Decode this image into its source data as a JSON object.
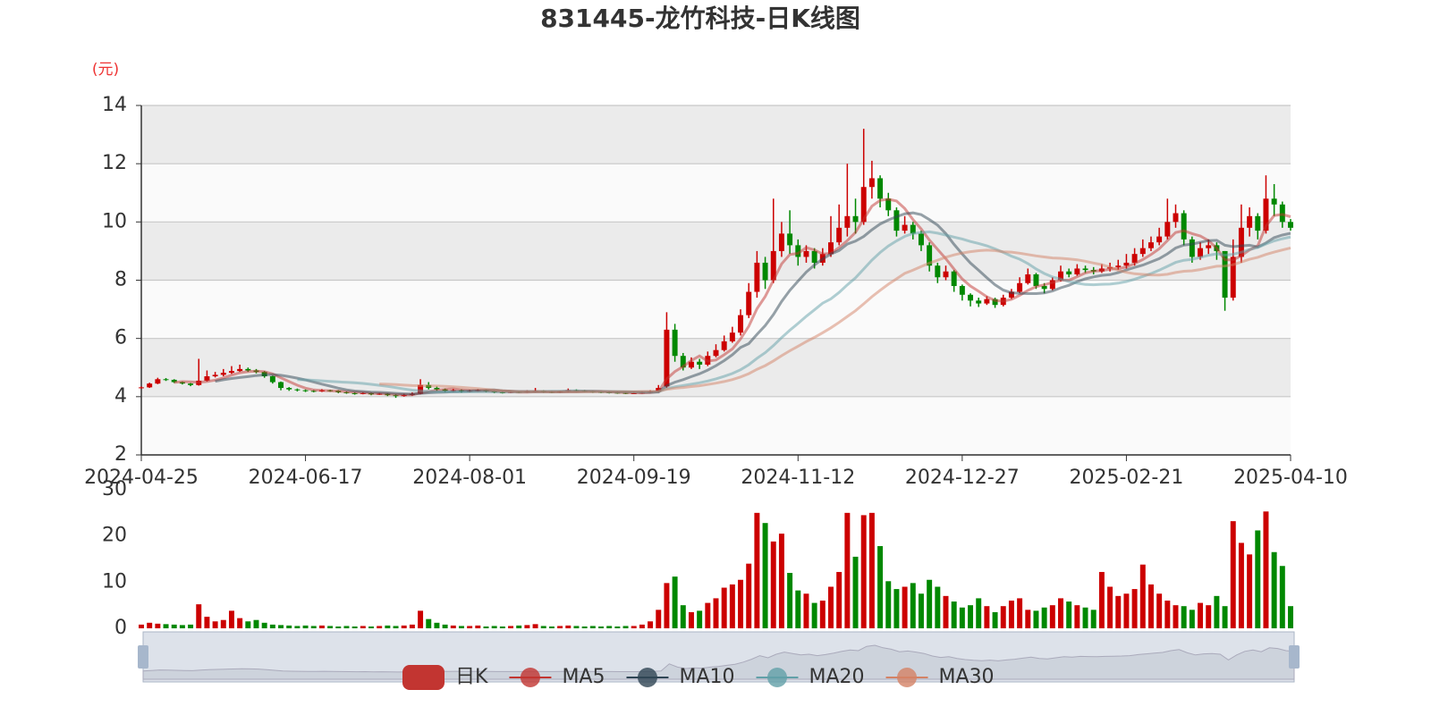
{
  "chart_data": {
    "type": "candlestick",
    "title": "831445-龙竹科技-日K线图",
    "y_unit_label": "(元)",
    "categories": [
      "2024-04-25",
      null,
      null,
      null,
      null,
      null,
      null,
      null,
      null,
      null,
      null,
      null,
      null,
      null,
      null,
      null,
      null,
      null,
      null,
      null,
      "2024-06-17",
      null,
      null,
      null,
      null,
      null,
      null,
      null,
      null,
      null,
      null,
      null,
      null,
      null,
      null,
      null,
      null,
      null,
      null,
      null,
      "2024-08-01",
      null,
      null,
      null,
      null,
      null,
      null,
      null,
      null,
      null,
      null,
      null,
      null,
      null,
      null,
      null,
      null,
      null,
      null,
      null,
      "2024-09-19",
      null,
      null,
      null,
      null,
      null,
      null,
      null,
      null,
      null,
      null,
      null,
      null,
      null,
      null,
      null,
      null,
      null,
      null,
      null,
      "2024-11-12",
      null,
      null,
      null,
      null,
      null,
      null,
      null,
      null,
      null,
      null,
      null,
      null,
      null,
      null,
      null,
      null,
      null,
      null,
      null,
      "2024-12-27",
      null,
      null,
      null,
      null,
      null,
      null,
      null,
      null,
      null,
      null,
      null,
      null,
      null,
      null,
      null,
      null,
      null,
      null,
      null,
      "2025-02-21",
      null,
      null,
      null,
      null,
      null,
      null,
      null,
      null,
      null,
      null,
      null,
      null,
      null,
      null,
      null,
      null,
      null,
      null,
      null,
      "2025-04-10"
    ],
    "series": [
      {
        "name": "日K",
        "type": "candlestick",
        "color": "#c23531",
        "up_color": "#cc0000",
        "down_color": "#008800",
        "values": [
          [
            4.3,
            4.32,
            4.28,
            4.35
          ],
          [
            4.32,
            4.45,
            4.3,
            4.48
          ],
          [
            4.45,
            4.6,
            4.43,
            4.65
          ],
          [
            4.6,
            4.58,
            4.54,
            4.64
          ],
          [
            4.58,
            4.5,
            4.47,
            4.6
          ],
          [
            4.5,
            4.45,
            4.42,
            4.52
          ],
          [
            4.45,
            4.4,
            4.36,
            4.47
          ],
          [
            4.4,
            4.55,
            4.38,
            5.3
          ],
          [
            4.55,
            4.7,
            4.52,
            4.9
          ],
          [
            4.7,
            4.75,
            4.66,
            4.85
          ],
          [
            4.75,
            4.82,
            4.7,
            4.95
          ],
          [
            4.82,
            4.88,
            4.78,
            5.05
          ],
          [
            4.88,
            4.95,
            4.85,
            5.1
          ],
          [
            4.95,
            4.9,
            4.85,
            5.0
          ],
          [
            4.9,
            4.85,
            4.8,
            4.95
          ],
          [
            4.85,
            4.7,
            4.65,
            4.88
          ],
          [
            4.7,
            4.5,
            4.45,
            4.72
          ],
          [
            4.5,
            4.3,
            4.22,
            4.52
          ],
          [
            4.3,
            4.25,
            4.2,
            4.33
          ],
          [
            4.25,
            4.22,
            4.18,
            4.28
          ],
          [
            4.22,
            4.2,
            4.16,
            4.25
          ],
          [
            4.2,
            4.18,
            4.15,
            4.23
          ],
          [
            4.18,
            4.22,
            4.16,
            4.26
          ],
          [
            4.22,
            4.2,
            4.17,
            4.24
          ],
          [
            4.2,
            4.15,
            4.12,
            4.22
          ],
          [
            4.15,
            4.12,
            4.1,
            4.18
          ],
          [
            4.12,
            4.1,
            4.07,
            4.15
          ],
          [
            4.1,
            4.12,
            4.08,
            4.15
          ],
          [
            4.12,
            4.08,
            4.05,
            4.14
          ],
          [
            4.08,
            4.1,
            4.06,
            4.13
          ],
          [
            4.1,
            4.05,
            4.02,
            4.12
          ],
          [
            4.05,
            4.02,
            3.96,
            4.08
          ],
          [
            4.02,
            4.06,
            4.0,
            4.1
          ],
          [
            4.06,
            4.1,
            4.03,
            4.15
          ],
          [
            4.1,
            4.4,
            4.08,
            4.6
          ],
          [
            4.4,
            4.3,
            4.25,
            4.5
          ],
          [
            4.3,
            4.25,
            4.2,
            4.35
          ],
          [
            4.25,
            4.2,
            4.16,
            4.28
          ],
          [
            4.2,
            4.22,
            4.17,
            4.27
          ],
          [
            4.22,
            4.18,
            4.14,
            4.25
          ],
          [
            4.18,
            4.2,
            4.15,
            4.24
          ],
          [
            4.2,
            4.22,
            4.17,
            4.26
          ],
          [
            4.22,
            4.18,
            4.15,
            4.24
          ],
          [
            4.18,
            4.15,
            4.12,
            4.2
          ],
          [
            4.15,
            4.14,
            4.11,
            4.18
          ],
          [
            4.14,
            4.16,
            4.12,
            4.19
          ],
          [
            4.16,
            4.15,
            4.12,
            4.18
          ],
          [
            4.15,
            4.18,
            4.13,
            4.22
          ],
          [
            4.18,
            4.2,
            4.15,
            4.3
          ],
          [
            4.2,
            4.16,
            4.13,
            4.22
          ],
          [
            4.16,
            4.15,
            4.12,
            4.19
          ],
          [
            4.15,
            4.18,
            4.13,
            4.21
          ],
          [
            4.18,
            4.22,
            4.16,
            4.28
          ],
          [
            4.22,
            4.2,
            4.17,
            4.25
          ],
          [
            4.2,
            4.18,
            4.15,
            4.23
          ],
          [
            4.18,
            4.16,
            4.13,
            4.2
          ],
          [
            4.16,
            4.15,
            4.12,
            4.19
          ],
          [
            4.15,
            4.14,
            4.11,
            4.18
          ],
          [
            4.14,
            4.13,
            4.1,
            4.17
          ],
          [
            4.13,
            4.12,
            4.09,
            4.16
          ],
          [
            4.12,
            4.12,
            4.09,
            4.16
          ],
          [
            4.12,
            4.14,
            4.1,
            4.18
          ],
          [
            4.14,
            4.18,
            4.12,
            4.22
          ],
          [
            4.18,
            4.3,
            4.15,
            4.4
          ],
          [
            4.35,
            6.3,
            4.3,
            6.9
          ],
          [
            6.3,
            5.4,
            5.2,
            6.5
          ],
          [
            5.4,
            5.0,
            4.9,
            5.5
          ],
          [
            5.0,
            5.2,
            4.95,
            5.35
          ],
          [
            5.2,
            5.1,
            4.95,
            5.3
          ],
          [
            5.1,
            5.4,
            5.05,
            5.55
          ],
          [
            5.4,
            5.6,
            5.35,
            5.8
          ],
          [
            5.6,
            5.9,
            5.55,
            6.1
          ],
          [
            5.9,
            6.2,
            5.85,
            6.4
          ],
          [
            6.2,
            6.8,
            6.1,
            7.0
          ],
          [
            6.8,
            7.6,
            6.7,
            7.9
          ],
          [
            7.6,
            8.6,
            7.4,
            9.0
          ],
          [
            8.6,
            8.0,
            7.7,
            8.8
          ],
          [
            8.0,
            9.0,
            7.9,
            10.8
          ],
          [
            9.0,
            9.6,
            8.8,
            10.0
          ],
          [
            9.6,
            9.2,
            8.9,
            10.4
          ],
          [
            9.2,
            8.8,
            8.5,
            9.4
          ],
          [
            8.8,
            9.0,
            8.6,
            9.2
          ],
          [
            9.0,
            8.6,
            8.4,
            9.1
          ],
          [
            8.6,
            8.9,
            8.5,
            9.1
          ],
          [
            8.9,
            9.3,
            8.8,
            10.2
          ],
          [
            9.3,
            9.8,
            9.2,
            10.6
          ],
          [
            9.8,
            10.2,
            9.5,
            12.0
          ],
          [
            10.2,
            10.0,
            9.6,
            10.8
          ],
          [
            10.0,
            11.2,
            9.9,
            13.2
          ],
          [
            11.2,
            11.5,
            10.8,
            12.1
          ],
          [
            11.5,
            10.8,
            10.5,
            11.6
          ],
          [
            10.8,
            10.4,
            10.2,
            11.0
          ],
          [
            10.4,
            9.7,
            9.5,
            10.5
          ],
          [
            9.7,
            9.9,
            9.6,
            10.2
          ],
          [
            9.9,
            9.6,
            9.4,
            10.0
          ],
          [
            9.6,
            9.2,
            9.0,
            9.7
          ],
          [
            9.2,
            8.5,
            8.3,
            9.3
          ],
          [
            8.5,
            8.1,
            7.9,
            8.6
          ],
          [
            8.1,
            8.3,
            8.0,
            8.5
          ],
          [
            8.3,
            7.8,
            7.6,
            8.35
          ],
          [
            7.8,
            7.5,
            7.3,
            7.85
          ],
          [
            7.5,
            7.3,
            7.1,
            7.55
          ],
          [
            7.3,
            7.2,
            7.08,
            7.4
          ],
          [
            7.2,
            7.35,
            7.15,
            7.45
          ],
          [
            7.35,
            7.15,
            7.05,
            7.4
          ],
          [
            7.15,
            7.4,
            7.1,
            7.5
          ],
          [
            7.4,
            7.6,
            7.35,
            7.7
          ],
          [
            7.6,
            7.9,
            7.55,
            8.1
          ],
          [
            7.9,
            8.2,
            7.85,
            8.4
          ],
          [
            8.2,
            7.8,
            7.7,
            8.25
          ],
          [
            7.8,
            7.7,
            7.55,
            7.9
          ],
          [
            7.7,
            8.0,
            7.65,
            8.1
          ],
          [
            8.0,
            8.3,
            7.95,
            8.5
          ],
          [
            8.3,
            8.2,
            8.1,
            8.4
          ],
          [
            8.2,
            8.4,
            8.15,
            8.55
          ],
          [
            8.4,
            8.35,
            8.25,
            8.5
          ],
          [
            8.35,
            8.3,
            8.2,
            8.45
          ],
          [
            8.3,
            8.4,
            8.25,
            8.55
          ],
          [
            8.4,
            8.45,
            8.3,
            8.6
          ],
          [
            8.45,
            8.5,
            8.35,
            8.7
          ],
          [
            8.5,
            8.6,
            8.4,
            8.9
          ],
          [
            8.6,
            8.9,
            8.5,
            9.1
          ],
          [
            8.9,
            9.1,
            8.8,
            9.4
          ],
          [
            9.1,
            9.3,
            9.0,
            9.5
          ],
          [
            9.3,
            9.5,
            9.2,
            9.8
          ],
          [
            9.5,
            10.0,
            9.4,
            10.8
          ],
          [
            10.0,
            10.3,
            9.8,
            10.6
          ],
          [
            10.3,
            9.4,
            9.2,
            10.4
          ],
          [
            9.4,
            8.8,
            8.6,
            9.5
          ],
          [
            8.8,
            9.1,
            8.7,
            9.3
          ],
          [
            9.1,
            9.2,
            8.9,
            9.4
          ],
          [
            9.2,
            9.0,
            8.7,
            9.3
          ],
          [
            9.0,
            7.4,
            6.95,
            9.0
          ],
          [
            7.4,
            8.8,
            7.3,
            9.4
          ],
          [
            8.8,
            9.8,
            8.6,
            10.6
          ],
          [
            9.8,
            10.2,
            9.5,
            10.5
          ],
          [
            10.2,
            9.7,
            9.4,
            10.3
          ],
          [
            9.7,
            10.8,
            9.6,
            11.6
          ],
          [
            10.8,
            10.6,
            10.2,
            11.3
          ],
          [
            10.6,
            10.0,
            9.8,
            10.7
          ],
          [
            10.0,
            9.8,
            9.7,
            10.1
          ]
        ]
      },
      {
        "name": "MA5",
        "type": "ma",
        "period": 5,
        "color": "#c23531"
      },
      {
        "name": "MA10",
        "type": "ma",
        "period": 10,
        "color": "#2f4554"
      },
      {
        "name": "MA20",
        "type": "ma",
        "period": 20,
        "color": "#61a0a8"
      },
      {
        "name": "MA30",
        "type": "ma",
        "period": 30,
        "color": "#d48265"
      }
    ],
    "ylim": [
      2,
      14
    ],
    "yticks": [
      2,
      4,
      6,
      8,
      10,
      12,
      14
    ],
    "grid": true,
    "split_area": true,
    "volume": {
      "values": [
        0.8,
        1.2,
        1.0,
        0.9,
        0.8,
        0.7,
        0.8,
        5.2,
        2.5,
        1.5,
        1.8,
        3.8,
        2.2,
        1.5,
        1.8,
        1.2,
        0.8,
        0.7,
        0.6,
        0.5,
        0.6,
        0.5,
        0.6,
        0.5,
        0.4,
        0.5,
        0.4,
        0.5,
        0.4,
        0.5,
        0.6,
        0.5,
        0.6,
        0.8,
        3.8,
        2.0,
        1.2,
        0.8,
        0.6,
        0.5,
        0.5,
        0.6,
        0.4,
        0.5,
        0.4,
        0.5,
        0.6,
        0.7,
        0.9,
        0.5,
        0.4,
        0.5,
        0.6,
        0.5,
        0.4,
        0.5,
        0.4,
        0.5,
        0.4,
        0.5,
        0.5,
        0.8,
        1.5,
        4.0,
        9.8,
        11.2,
        5.0,
        3.5,
        3.8,
        5.5,
        6.5,
        8.8,
        9.5,
        10.5,
        14.0,
        25.0,
        22.8,
        18.8,
        20.5,
        12.0,
        8.2,
        7.5,
        5.5,
        6.0,
        9.0,
        12.2,
        25.0,
        15.5,
        24.5,
        25.0,
        17.8,
        10.2,
        8.5,
        9.0,
        9.8,
        7.5,
        10.5,
        9.0,
        7.0,
        5.8,
        4.5,
        5.0,
        6.5,
        4.8,
        3.5,
        4.8,
        6.0,
        6.5,
        4.0,
        3.8,
        4.5,
        5.0,
        6.5,
        5.8,
        5.0,
        4.5,
        4.0,
        12.2,
        9.0,
        7.0,
        7.5,
        8.5,
        13.8,
        9.5,
        7.5,
        6.0,
        5.0,
        4.8,
        4.0,
        5.5,
        5.0,
        7.0,
        4.8,
        23.2,
        18.5,
        16.0,
        21.2,
        25.3,
        16.5,
        13.5,
        4.8
      ],
      "ylim": [
        0,
        30
      ],
      "yticks": [
        0,
        10,
        20,
        30
      ]
    }
  }
}
